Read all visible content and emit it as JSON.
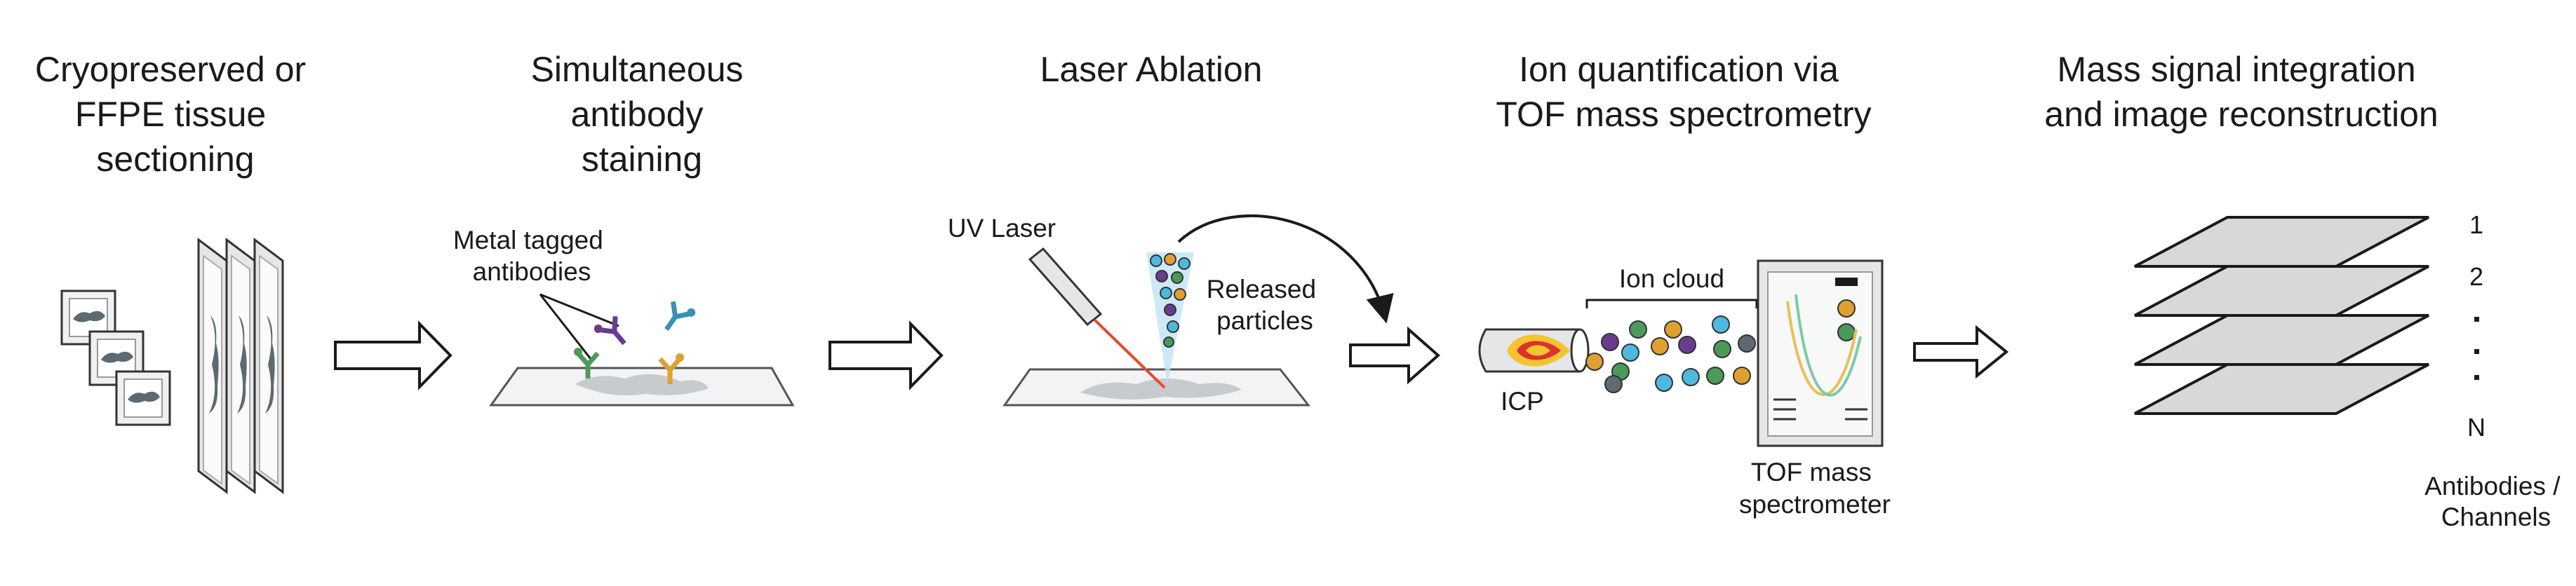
{
  "steps": {
    "sectioning": {
      "title_lines": [
        "Cryopreserved or",
        "FFPE tissue",
        "sectioning"
      ]
    },
    "staining": {
      "title_lines": [
        "Simultaneous",
        "antibody",
        "staining"
      ],
      "label_lines": [
        "Metal tagged",
        "antibodies"
      ]
    },
    "ablation": {
      "title": "Laser Ablation",
      "laser_label": "UV Laser",
      "particles_lines": [
        "Released",
        "particles"
      ]
    },
    "quantification": {
      "title_lines": [
        "Ion quantification via",
        "TOF mass spectrometry"
      ],
      "cloud_label": "Ion cloud",
      "icp_label": "ICP",
      "spectrometer_lines": [
        "TOF mass",
        "spectrometer"
      ]
    },
    "reconstruction": {
      "title_lines": [
        "Mass signal integration",
        "and image reconstruction"
      ],
      "channels": [
        "1",
        "2",
        "N"
      ],
      "channels_caption_lines": [
        "Antibodies /",
        "Channels"
      ]
    }
  },
  "colors": {
    "slide": "#dfe1e2",
    "tissue": "#5e6a72",
    "laser": "#e8472e",
    "plume": "#4fb8de",
    "layer": "#d6d8d9",
    "icp_flame": "#f4c430",
    "icp_core": "#d9332a"
  },
  "icons": [
    "slide-icon",
    "antibody-icon",
    "laser-icon",
    "icp-torch-icon",
    "spectrometer-icon",
    "arrow-icon"
  ]
}
